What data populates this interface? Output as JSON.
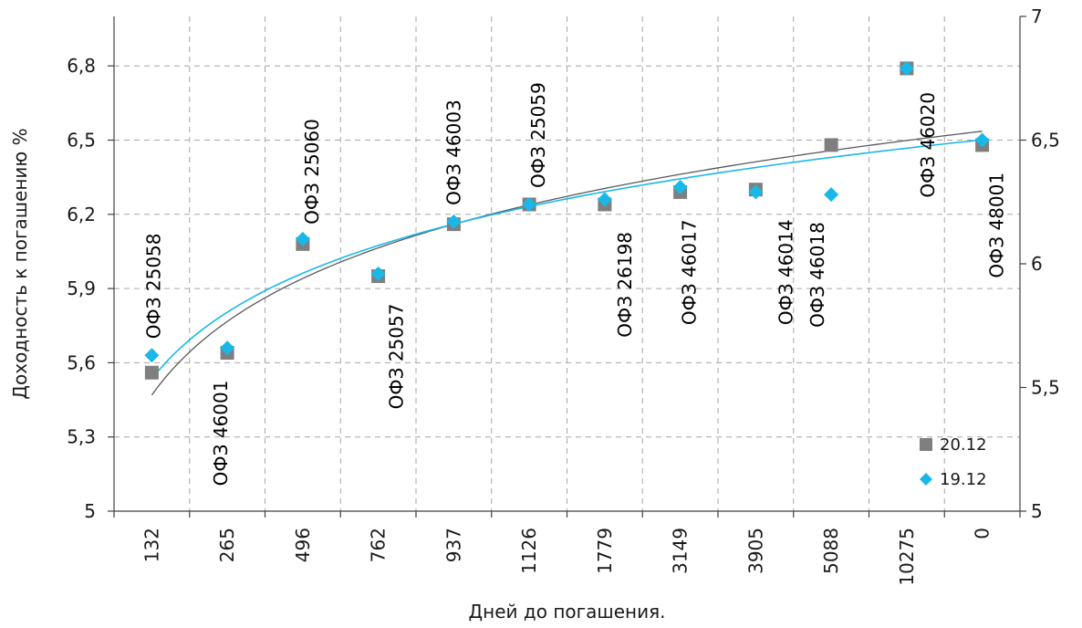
{
  "chart_data": {
    "type": "scatter",
    "categories": [
      "132",
      "265",
      "496",
      "762",
      "937",
      "1126",
      "1779",
      "3149",
      "3905",
      "5088",
      "10275",
      "0"
    ],
    "xlabel": "Дней до погашения.",
    "ylabel": "Доходность к погашению %",
    "y_primary": {
      "ylim": [
        5,
        7.0
      ],
      "ticks": [
        "5",
        "5,3",
        "5,6",
        "5,9",
        "6,2",
        "6,5",
        "6,8"
      ]
    },
    "y_secondary": {
      "ylim": [
        5,
        7
      ],
      "ticks": [
        "5",
        "5,5",
        "6",
        "6,5",
        "7"
      ]
    },
    "grid": true,
    "legend_position": "bottom-right",
    "series": [
      {
        "name": "20.12",
        "marker": "square",
        "color": "#7f7f7f",
        "trendline_color": "#595959",
        "values": [
          5.56,
          5.64,
          6.08,
          5.95,
          6.16,
          6.24,
          6.24,
          6.29,
          6.3,
          6.48,
          6.79,
          6.48
        ]
      },
      {
        "name": "19.12",
        "marker": "diamond",
        "color": "#19b8e8",
        "trendline_color": "#19b8e8",
        "values": [
          5.63,
          5.66,
          6.1,
          5.96,
          6.17,
          6.24,
          6.26,
          6.31,
          6.29,
          6.28,
          6.79,
          6.5
        ]
      }
    ],
    "trendline": "logarithmic",
    "point_labels": [
      "ОФЗ 25058",
      "ОФЗ 46001",
      "ОФЗ 25060",
      "ОФЗ 25057",
      "ОФЗ 46003",
      "ОФЗ 25059",
      "ОФЗ 26198",
      "ОФЗ 46017",
      "ОФЗ 46014",
      "ОФЗ 46018",
      "ОФЗ 46020",
      "ОФЗ 48001"
    ]
  }
}
